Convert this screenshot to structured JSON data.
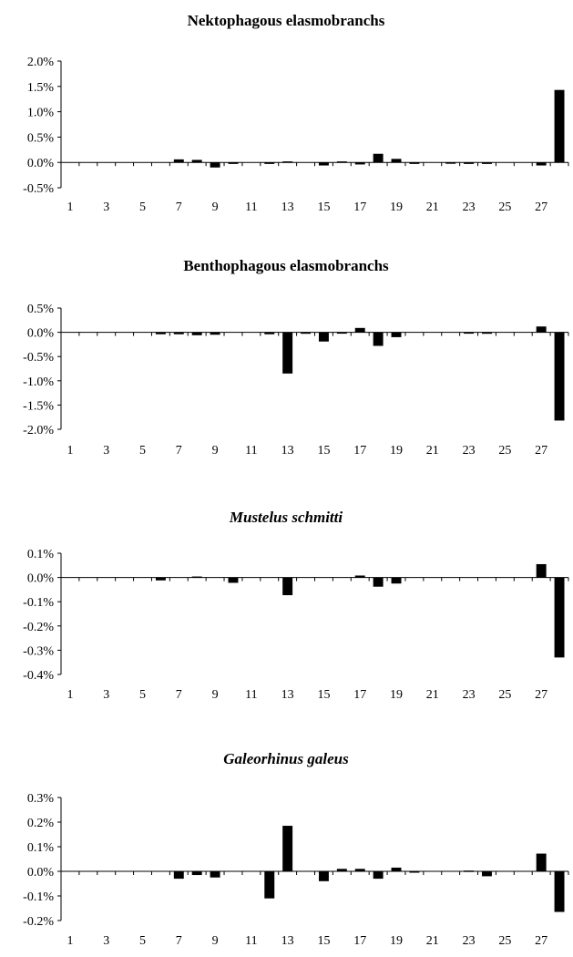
{
  "chart_data": [
    {
      "type": "bar",
      "title": "Nektophagous elasmobranchs",
      "title_italic": false,
      "categories": [
        1,
        2,
        3,
        4,
        5,
        6,
        7,
        8,
        9,
        10,
        11,
        12,
        13,
        14,
        15,
        16,
        17,
        18,
        19,
        20,
        21,
        22,
        23,
        24,
        25,
        26,
        27,
        28
      ],
      "x_tick_labels": [
        "1",
        "3",
        "5",
        "7",
        "9",
        "11",
        "13",
        "15",
        "17",
        "19",
        "21",
        "23",
        "25",
        "27"
      ],
      "x_tick_values": [
        1,
        3,
        5,
        7,
        9,
        11,
        13,
        15,
        17,
        19,
        21,
        23,
        25,
        27
      ],
      "values": [
        0,
        0,
        0,
        0,
        0,
        0,
        0.06,
        0.05,
        -0.1,
        -0.03,
        0,
        -0.03,
        0.02,
        0,
        -0.06,
        0.02,
        -0.04,
        0.17,
        0.07,
        -0.03,
        0,
        -0.02,
        -0.03,
        -0.03,
        0,
        0,
        -0.06,
        1.43
      ],
      "ylim": [
        -0.5,
        2.0
      ],
      "y_ticks": [
        -0.5,
        0.0,
        0.5,
        1.0,
        1.5,
        2.0
      ],
      "y_tick_labels": [
        "-0.5%",
        "0.0%",
        "0.5%",
        "1.0%",
        "1.5%",
        "2.0%"
      ],
      "xlabel": "",
      "ylabel": "",
      "grid": false
    },
    {
      "type": "bar",
      "title": "Benthophagous elasmobranchs",
      "title_italic": false,
      "categories": [
        1,
        2,
        3,
        4,
        5,
        6,
        7,
        8,
        9,
        10,
        11,
        12,
        13,
        14,
        15,
        16,
        17,
        18,
        19,
        20,
        21,
        22,
        23,
        24,
        25,
        26,
        27,
        28
      ],
      "x_tick_labels": [
        "1",
        "3",
        "5",
        "7",
        "9",
        "11",
        "13",
        "15",
        "17",
        "19",
        "21",
        "23",
        "25",
        "27"
      ],
      "x_tick_values": [
        1,
        3,
        5,
        7,
        9,
        11,
        13,
        15,
        17,
        19,
        21,
        23,
        25,
        27
      ],
      "values": [
        0,
        0,
        0,
        0,
        0,
        -0.04,
        -0.04,
        -0.06,
        -0.05,
        0,
        0,
        -0.04,
        -0.85,
        -0.03,
        -0.19,
        -0.02,
        0.09,
        -0.28,
        -0.1,
        0,
        0,
        0,
        -0.02,
        -0.03,
        0,
        0,
        0.12,
        -1.82
      ],
      "ylim": [
        -2.0,
        0.5
      ],
      "y_ticks": [
        -2.0,
        -1.5,
        -1.0,
        -0.5,
        0.0,
        0.5
      ],
      "y_tick_labels": [
        "-2.0%",
        "-1.5%",
        "-1.0%",
        "-0.5%",
        "0.0%",
        "0.5%"
      ],
      "xlabel": "",
      "ylabel": "",
      "grid": false
    },
    {
      "type": "bar",
      "title": "Mustelus schmitti",
      "title_italic": true,
      "categories": [
        1,
        2,
        3,
        4,
        5,
        6,
        7,
        8,
        9,
        10,
        11,
        12,
        13,
        14,
        15,
        16,
        17,
        18,
        19,
        20,
        21,
        22,
        23,
        24,
        25,
        26,
        27,
        28
      ],
      "x_tick_labels": [
        "1",
        "3",
        "5",
        "7",
        "9",
        "11",
        "13",
        "15",
        "17",
        "19",
        "21",
        "23",
        "25",
        "27"
      ],
      "x_tick_values": [
        1,
        3,
        5,
        7,
        9,
        11,
        13,
        15,
        17,
        19,
        21,
        23,
        25,
        27
      ],
      "values": [
        0,
        0,
        0,
        0,
        0,
        -0.012,
        0,
        0.004,
        0,
        -0.022,
        0,
        0,
        -0.073,
        0,
        0,
        0,
        0.008,
        -0.038,
        -0.025,
        0,
        0,
        0,
        0,
        0,
        0,
        0,
        0.055,
        -0.33
      ],
      "ylim": [
        -0.4,
        0.1
      ],
      "y_ticks": [
        -0.4,
        -0.3,
        -0.2,
        -0.1,
        0.0,
        0.1
      ],
      "y_tick_labels": [
        "-0.4%",
        "-0.3%",
        "-0.2%",
        "-0.1%",
        "0.0%",
        "0.1%"
      ],
      "xlabel": "",
      "ylabel": "",
      "grid": false
    },
    {
      "type": "bar",
      "title": "Galeorhinus galeus",
      "title_italic": true,
      "categories": [
        1,
        2,
        3,
        4,
        5,
        6,
        7,
        8,
        9,
        10,
        11,
        12,
        13,
        14,
        15,
        16,
        17,
        18,
        19,
        20,
        21,
        22,
        23,
        24,
        25,
        26,
        27,
        28
      ],
      "x_tick_labels": [
        "1",
        "3",
        "5",
        "7",
        "9",
        "11",
        "13",
        "15",
        "17",
        "19",
        "21",
        "23",
        "25",
        "27"
      ],
      "x_tick_values": [
        1,
        3,
        5,
        7,
        9,
        11,
        13,
        15,
        17,
        19,
        21,
        23,
        25,
        27
      ],
      "values": [
        0,
        0,
        0,
        0,
        0,
        0,
        -0.03,
        -0.015,
        -0.025,
        0,
        0,
        -0.11,
        0.185,
        0,
        -0.04,
        0.01,
        0.01,
        -0.03,
        0.015,
        -0.005,
        0,
        0,
        0.003,
        -0.02,
        0,
        0,
        0.072,
        -0.165
      ],
      "ylim": [
        -0.2,
        0.3
      ],
      "y_ticks": [
        -0.2,
        -0.1,
        0.0,
        0.1,
        0.2,
        0.3
      ],
      "y_tick_labels": [
        "-0.2%",
        "-0.1%",
        "0.0%",
        "0.1%",
        "0.2%",
        "0.3%"
      ],
      "xlabel": "",
      "ylabel": "",
      "grid": false
    }
  ]
}
